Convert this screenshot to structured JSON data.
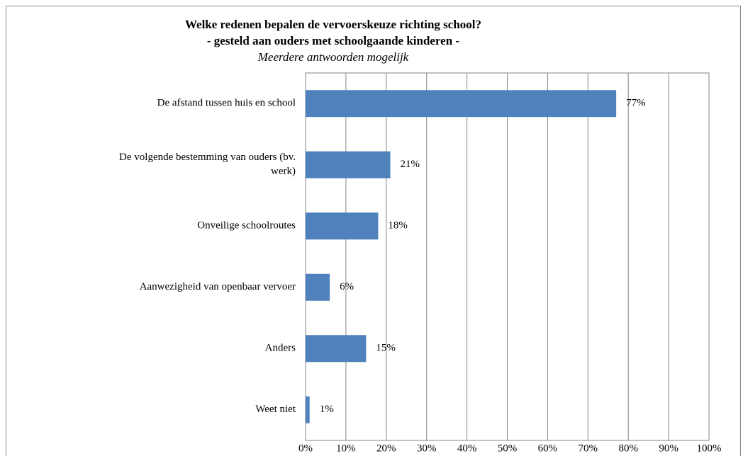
{
  "chart_data": {
    "type": "hbar",
    "title": "Welke redenen bepalen de vervoerskeuze richting  school?",
    "subtitle": "- gesteld aan ouders met schoolgaande kinderen -",
    "annotation": "Meerdere antwoorden  mogelijk",
    "categories": [
      "De afstand tussen huis en school",
      "De volgende  bestemming  van ouders (bv. werk)",
      "Onveilige  schoolroutes",
      "Aanwezigheid  van openbaar vervoer",
      "Anders",
      "Weet niet"
    ],
    "values": [
      77,
      21,
      18,
      6,
      15,
      1
    ],
    "value_labels": [
      "77%",
      "21%",
      "18%",
      "6%",
      "15%",
      "1%"
    ],
    "color": "#4f81bd",
    "xlim": [
      0,
      100
    ],
    "xticks": [
      {
        "value": 0,
        "label": "0%"
      },
      {
        "value": 10,
        "label": "10%"
      },
      {
        "value": 20,
        "label": "20%"
      },
      {
        "value": 30,
        "label": "30%"
      },
      {
        "value": 40,
        "label": "40%"
      },
      {
        "value": 50,
        "label": "50%"
      },
      {
        "value": 60,
        "label": "60%"
      },
      {
        "value": 70,
        "label": "70%"
      },
      {
        "value": 80,
        "label": "80%"
      },
      {
        "value": 90,
        "label": "90%"
      },
      {
        "value": 100,
        "label": "100%"
      }
    ],
    "grid": true
  }
}
